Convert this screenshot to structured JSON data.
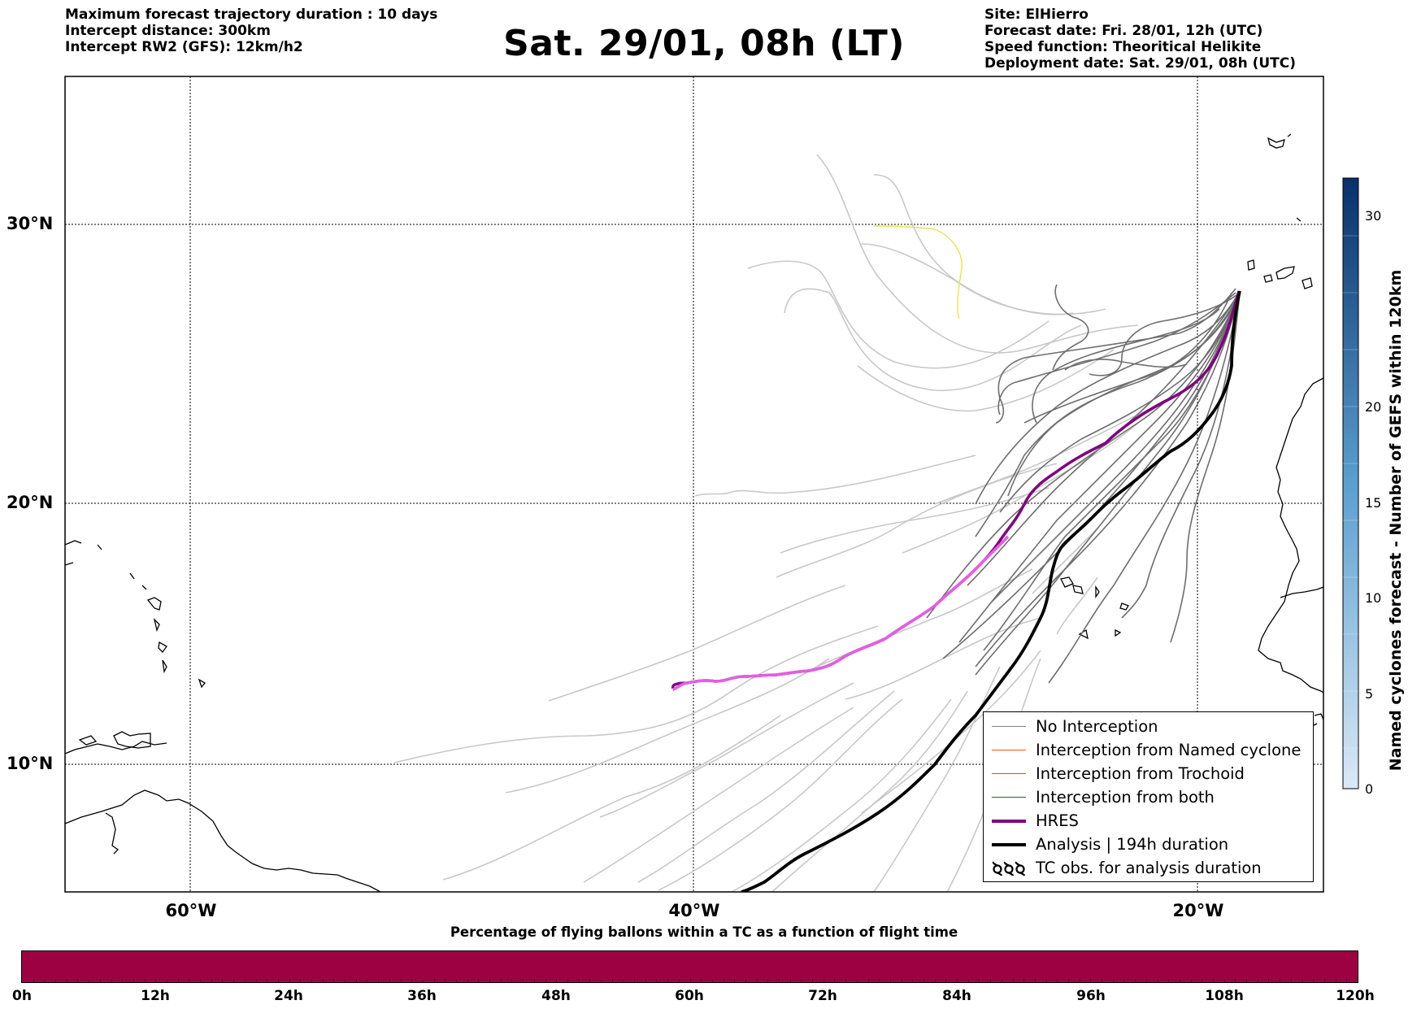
{
  "header": {
    "left_lines": [
      "Maximum forecast trajectory duration : 10 days",
      "Intercept distance: 300km",
      "Intercept RW2 (GFS):  12km/h2"
    ],
    "title": "Sat. 29/01, 08h (LT)",
    "right_lines": [
      "Site: ElHierro",
      "Forecast date: Fri. 28/01, 12h (UTC)",
      "Speed function: Theoritical Helikite",
      "Deployment date: Sat. 29/01, 08h (UTC)"
    ]
  },
  "map": {
    "lat_labels": [
      "30°N",
      "20°N",
      "10°N"
    ],
    "lon_labels": [
      "60°W",
      "40°W",
      "20°W"
    ],
    "grid_lines": true
  },
  "legend": {
    "items": [
      {
        "label": "No Interception",
        "color": "#808080"
      },
      {
        "label": "Interception from Named cyclone",
        "color": "#ff5500"
      },
      {
        "label": "Interception from Trochoid",
        "color": "#808000"
      },
      {
        "label": "Interception from both",
        "color": "#008000"
      },
      {
        "label": "HRES",
        "color": "#800080"
      },
      {
        "label": "Analysis | 194h duration",
        "color": "#000000"
      },
      {
        "label": "TC obs. for analysis duration",
        "icon": "ccc"
      }
    ]
  },
  "right_colorbar": {
    "label": "Named cyclones forecast - Number of GEFS within 120km",
    "ticks": [
      "0",
      "5",
      "10",
      "15",
      "20",
      "30"
    ],
    "range": [
      0,
      32
    ],
    "colors": [
      "#dbe9f6",
      "#08306b"
    ]
  },
  "bottom_colorbar": {
    "title": "Percentage of flying ballons within a TC as a function of flight time",
    "color": "#9e0142",
    "ticks": [
      "0h",
      "12h",
      "24h",
      "36h",
      "48h",
      "60h",
      "72h",
      "84h",
      "96h",
      "108h",
      "120h"
    ]
  }
}
